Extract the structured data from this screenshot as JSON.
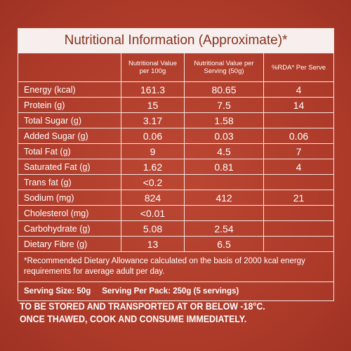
{
  "title": "Nutritional Information (Approximate)*",
  "table": {
    "headers": [
      "Nutritional Value per 100g",
      "Nutritional Value per Serving (50g)",
      "%RDA* Per Serve"
    ],
    "rows": [
      {
        "label": "Energy (kcal)",
        "per100g": "161.3",
        "perServing": "80.65",
        "rda": "4"
      },
      {
        "label": "Protein (g)",
        "per100g": "15",
        "perServing": "7.5",
        "rda": "14"
      },
      {
        "label": "Total Sugar (g)",
        "per100g": "3.17",
        "perServing": "1.58"
      },
      {
        "label": "Added Sugar (g)",
        "per100g": "0.06",
        "perServing": "0.03",
        "rda": "0.06"
      },
      {
        "label": "Total Fat (g)",
        "per100g": "9",
        "perServing": "4.5",
        "rda": "7"
      },
      {
        "label": "Saturated Fat (g)",
        "per100g": "1.62",
        "perServing": "0.81",
        "rda": "4"
      },
      {
        "label": "Trans fat (g)",
        "per100g": "<0.2"
      },
      {
        "label": "Sodium (mg)",
        "per100g": "824",
        "perServing": "412",
        "rda": "21"
      },
      {
        "label": "Cholesterol (mg)",
        "per100g": "<0.01"
      },
      {
        "label": "Carbohydrate (g)",
        "per100g": "5.08",
        "perServing": "2.54"
      },
      {
        "label": "Dietary Fibre (g)",
        "per100g": "13",
        "perServing": "6.5"
      }
    ],
    "footnote": "*Recommended Dietary Allowance calculated on the basis of 2000 kcal energy requirements for average adult per day.",
    "serving_size": "Serving Size: 50g",
    "serving_per_pack": "Serving Per Pack: 250g (5 servings)"
  },
  "storage": [
    "TO BE STORED AND TRANSPORTED AT OR BELOW -18°C.",
    "ONCE THAWED, COOK AND CONSUME IMMEDIATELY."
  ]
}
